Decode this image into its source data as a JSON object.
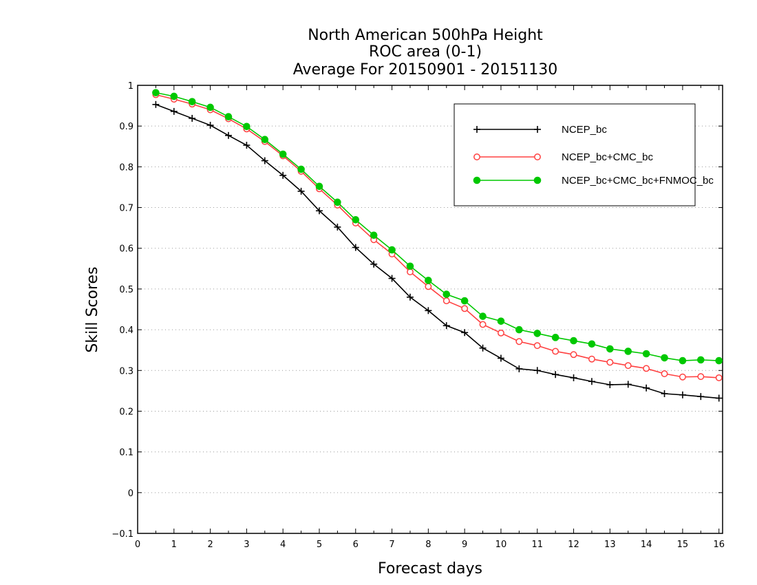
{
  "chart_data": {
    "type": "line",
    "title_lines": [
      "North American 500hPa Height",
      "ROC area (0-1)",
      "Average For 20150901 - 20151130"
    ],
    "xlabel": "Forecast days",
    "ylabel": "Skill Scores",
    "xlim": [
      0,
      16.1
    ],
    "ylim": [
      -0.1,
      1
    ],
    "xticks": [
      "0",
      "1",
      "2",
      "3",
      "4",
      "5",
      "6",
      "7",
      "8",
      "9",
      "10",
      "11",
      "12",
      "13",
      "14",
      "15",
      "16"
    ],
    "yticks": [
      "-0.1",
      "0",
      "0.1",
      "0.2",
      "0.3",
      "0.4",
      "0.5",
      "0.6",
      "0.7",
      "0.8",
      "0.9",
      "1"
    ],
    "grid": "horizontal dotted",
    "legend_position": "top-right",
    "x": [
      0.5,
      1,
      1.5,
      2,
      2.5,
      3,
      3.5,
      4,
      4.5,
      5,
      5.5,
      6,
      6.5,
      7,
      7.5,
      8,
      8.5,
      9,
      9.5,
      10,
      10.5,
      11,
      11.5,
      12,
      12.5,
      13,
      13.5,
      14,
      14.5,
      15,
      15.5,
      16
    ],
    "series": [
      {
        "name": "NCEP_bc",
        "color": "#000000",
        "marker": "plus",
        "values": [
          0.953,
          0.936,
          0.919,
          0.902,
          0.877,
          0.853,
          0.815,
          0.779,
          0.74,
          0.692,
          0.652,
          0.602,
          0.561,
          0.526,
          0.48,
          0.447,
          0.41,
          0.393,
          0.355,
          0.33,
          0.304,
          0.3,
          0.29,
          0.282,
          0.273,
          0.265,
          0.266,
          0.257,
          0.243,
          0.24,
          0.236,
          0.232
        ]
      },
      {
        "name": "NCEP_bc+CMC_bc",
        "color": "#ff4040",
        "marker": "open-circle",
        "values": [
          0.977,
          0.966,
          0.954,
          0.94,
          0.918,
          0.893,
          0.862,
          0.827,
          0.789,
          0.746,
          0.706,
          0.662,
          0.621,
          0.586,
          0.542,
          0.506,
          0.471,
          0.452,
          0.413,
          0.392,
          0.371,
          0.361,
          0.347,
          0.339,
          0.328,
          0.32,
          0.312,
          0.305,
          0.292,
          0.284,
          0.285,
          0.282
        ]
      },
      {
        "name": "NCEP_bc+CMC_bc+FNMOC_bc",
        "color": "#00c800",
        "marker": "filled-circle",
        "values": [
          0.982,
          0.973,
          0.96,
          0.946,
          0.923,
          0.899,
          0.867,
          0.831,
          0.794,
          0.752,
          0.713,
          0.67,
          0.632,
          0.596,
          0.556,
          0.521,
          0.487,
          0.471,
          0.433,
          0.421,
          0.4,
          0.391,
          0.381,
          0.373,
          0.365,
          0.353,
          0.347,
          0.341,
          0.331,
          0.324,
          0.326,
          0.324
        ]
      }
    ]
  }
}
